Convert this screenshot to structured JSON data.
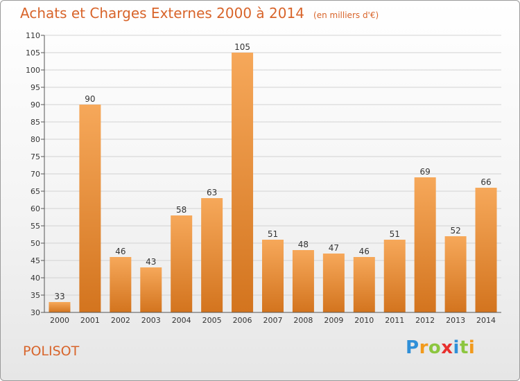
{
  "title": "Achats et Charges Externes 2000 à 2014",
  "unit_note": "(en milliers d'€)",
  "town": "POLISOT",
  "brand": {
    "letters": [
      "P",
      "r",
      "o",
      "x",
      "i",
      "t",
      "i"
    ],
    "colors": [
      "#2f8fd8",
      "#f29a1c",
      "#8cc63f",
      "#e8302e",
      "#2f8fd8",
      "#8cc63f",
      "#f29a1c"
    ]
  },
  "colors": {
    "bar_top": "#f6a85a",
    "bar_bottom": "#d3741e",
    "grid": "#d2d2d2",
    "axis": "#555555",
    "accent": "#d8642a"
  },
  "chart_data": {
    "type": "bar",
    "title": "Achats et Charges Externes 2000 à 2014",
    "categories": [
      "2000",
      "2001",
      "2002",
      "2003",
      "2004",
      "2005",
      "2006",
      "2007",
      "2008",
      "2009",
      "2010",
      "2011",
      "2012",
      "2013",
      "2014"
    ],
    "values": [
      33,
      90,
      46,
      43,
      58,
      63,
      105,
      51,
      48,
      47,
      46,
      51,
      69,
      52,
      66
    ],
    "ylim": [
      30,
      110
    ],
    "yticks": [
      30,
      35,
      40,
      45,
      50,
      55,
      60,
      65,
      70,
      75,
      80,
      85,
      90,
      95,
      100,
      105,
      110
    ],
    "grid": true,
    "xlabel": "",
    "ylabel": ""
  }
}
